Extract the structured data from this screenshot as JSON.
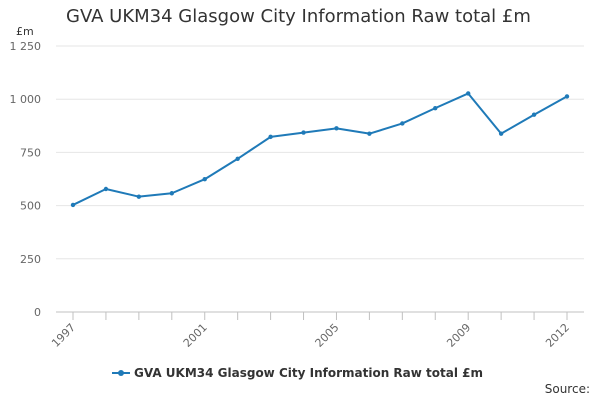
{
  "chart_data": {
    "type": "line",
    "title": "GVA UKM34 Glasgow City Information Raw total £m",
    "ylabel": "£m",
    "x": [
      1997,
      1998,
      1999,
      2000,
      2001,
      2002,
      2003,
      2004,
      2005,
      2006,
      2007,
      2008,
      2009,
      2010,
      2011,
      2012
    ],
    "x_tick_labels": [
      "1997",
      "2001",
      "2005",
      "2009",
      "2012"
    ],
    "x_tick_values": [
      1997,
      2001,
      2005,
      2009,
      2012
    ],
    "y_tick_labels": [
      "0",
      "250",
      "500",
      "750",
      "1 000",
      "1 250"
    ],
    "y_tick_values": [
      0,
      250,
      500,
      750,
      1000,
      1250
    ],
    "ylim": [
      0,
      1250
    ],
    "grid": true,
    "legend_position": "bottom",
    "series": [
      {
        "name": "GVA UKM34 Glasgow City Information Raw total £m",
        "color": "#1f7ab8",
        "values": [
          503,
          578,
          542,
          558,
          624,
          720,
          823,
          843,
          863,
          838,
          886,
          958,
          1027,
          838,
          927,
          1013
        ]
      }
    ],
    "source_label": "Source:"
  }
}
